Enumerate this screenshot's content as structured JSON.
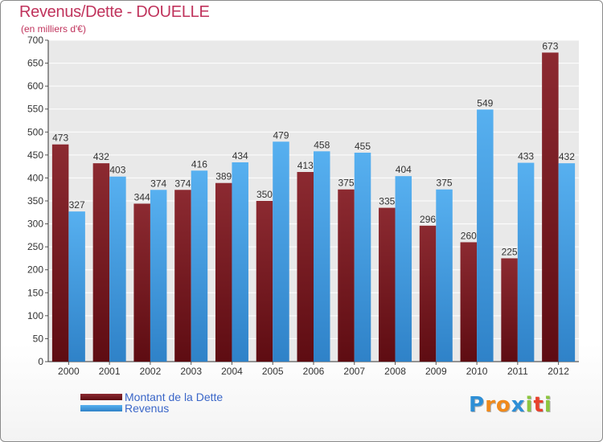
{
  "chart_data": {
    "type": "bar",
    "title": "Revenus/Dette - DOUELLE",
    "subtitle": "(en milliers d'€)",
    "categories": [
      "2000",
      "2001",
      "2002",
      "2003",
      "2004",
      "2005",
      "2006",
      "2007",
      "2008",
      "2009",
      "2010",
      "2011",
      "2012"
    ],
    "series": [
      {
        "name": "Montant de la Dette",
        "color": "#7a1f26",
        "values": [
          473,
          432,
          344,
          374,
          389,
          350,
          413,
          375,
          335,
          296,
          260,
          225,
          673
        ]
      },
      {
        "name": "Revenus",
        "color": "#3d9be3",
        "values": [
          327,
          403,
          374,
          416,
          434,
          479,
          458,
          455,
          404,
          375,
          549,
          433,
          432
        ]
      }
    ],
    "ylim": [
      0,
      700
    ],
    "yticks": [
      "0",
      "50",
      "100",
      "150",
      "200",
      "250",
      "300",
      "350",
      "400",
      "450",
      "500",
      "550",
      "600",
      "650",
      "700"
    ],
    "grid": true,
    "legend_position": "bottom-left"
  },
  "logo": {
    "letters": [
      "P",
      "r",
      "o",
      "x",
      "i",
      "t",
      "i"
    ],
    "colors": [
      "#2e8fd6",
      "#f08a1c",
      "#f08a1c",
      "#2e8fd6",
      "#8dc63f",
      "#e8412c",
      "#8dc63f"
    ]
  }
}
